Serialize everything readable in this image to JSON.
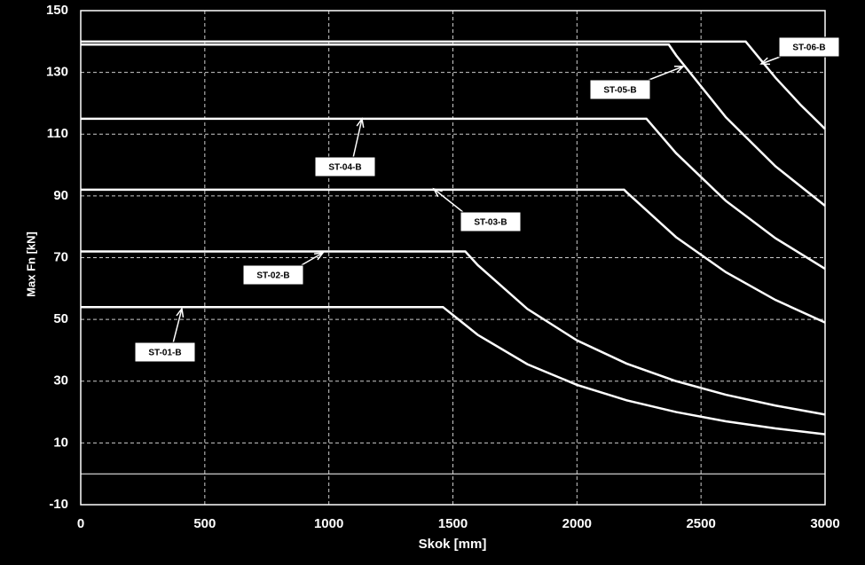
{
  "chart_data": {
    "type": "line",
    "x_label": "Skok [mm]",
    "y_label": "Max Fn [kN]",
    "xlim": [
      0,
      3000
    ],
    "xticks": [
      0,
      500,
      1000,
      1500,
      2000,
      2500,
      3000
    ],
    "ylim": [
      -10,
      150
    ],
    "yticks": [
      -10,
      10,
      30,
      50,
      70,
      90,
      110,
      130,
      150
    ],
    "grid": true,
    "series": [
      {
        "name": "ST-01-B",
        "color": "#ffffff",
        "x": [
          0,
          1460,
          1600,
          1800,
          2000,
          2200,
          2400,
          2600,
          2800,
          3000
        ],
        "values": [
          54,
          54,
          45.0,
          35.5,
          28.8,
          23.8,
          20.0,
          17.0,
          14.7,
          12.8
        ]
      },
      {
        "name": "ST-02-B",
        "color": "#ffffff",
        "x": [
          0,
          1550,
          1600,
          1800,
          2000,
          2200,
          2400,
          2600,
          2800,
          3000
        ],
        "values": [
          72,
          72,
          67.6,
          53.4,
          43.2,
          35.7,
          30.0,
          25.6,
          22.1,
          19.2
        ]
      },
      {
        "name": "ST-03-B",
        "color": "#ffffff",
        "x": [
          0,
          2190,
          2200,
          2400,
          2600,
          2800,
          3000
        ],
        "values": [
          92,
          92,
          91.2,
          76.6,
          65.3,
          56.3,
          49.0
        ]
      },
      {
        "name": "ST-04-B",
        "color": "#ffffff",
        "x": [
          0,
          2280,
          2400,
          2600,
          2800,
          3000
        ],
        "values": [
          115,
          115,
          103.8,
          88.4,
          76.3,
          66.4
        ]
      },
      {
        "name": "ST-05-B",
        "color": "#ffffff",
        "x": [
          0,
          2370,
          2400,
          2600,
          2800,
          3000
        ],
        "values": [
          139,
          139,
          135.5,
          115.5,
          99.6,
          86.8
        ]
      },
      {
        "name": "ST-06-B",
        "color": "#ffffff",
        "x": [
          0,
          2680,
          2800,
          2900,
          3000
        ],
        "values": [
          140,
          140,
          128.3,
          119.6,
          111.7
        ]
      }
    ]
  }
}
